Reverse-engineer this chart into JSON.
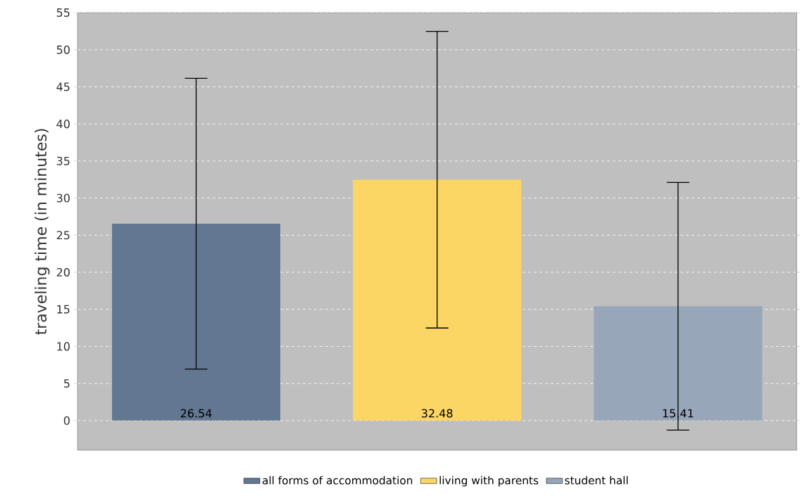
{
  "chart_data": {
    "type": "bar",
    "ylabel": "traveling time (in minutes)",
    "categories": [
      null
    ],
    "series": [
      {
        "name": "all forms of accommodation",
        "color": "#637792",
        "values": [
          26.54
        ],
        "errors": [
          19.6
        ]
      },
      {
        "name": "living with parents",
        "color": "#fcd664",
        "values": [
          32.48
        ],
        "errors": [
          20.0
        ]
      },
      {
        "name": "student hall",
        "color": "#98a6b9",
        "values": [
          15.41
        ],
        "errors": [
          16.7
        ]
      }
    ],
    "ylim": [
      -4,
      55
    ],
    "yticks": [
      0,
      5,
      10,
      15,
      20,
      25,
      30,
      35,
      40,
      45,
      50,
      55
    ],
    "grid": "y",
    "legend": "bottom",
    "data_labels": true,
    "tick_labels": "y"
  }
}
